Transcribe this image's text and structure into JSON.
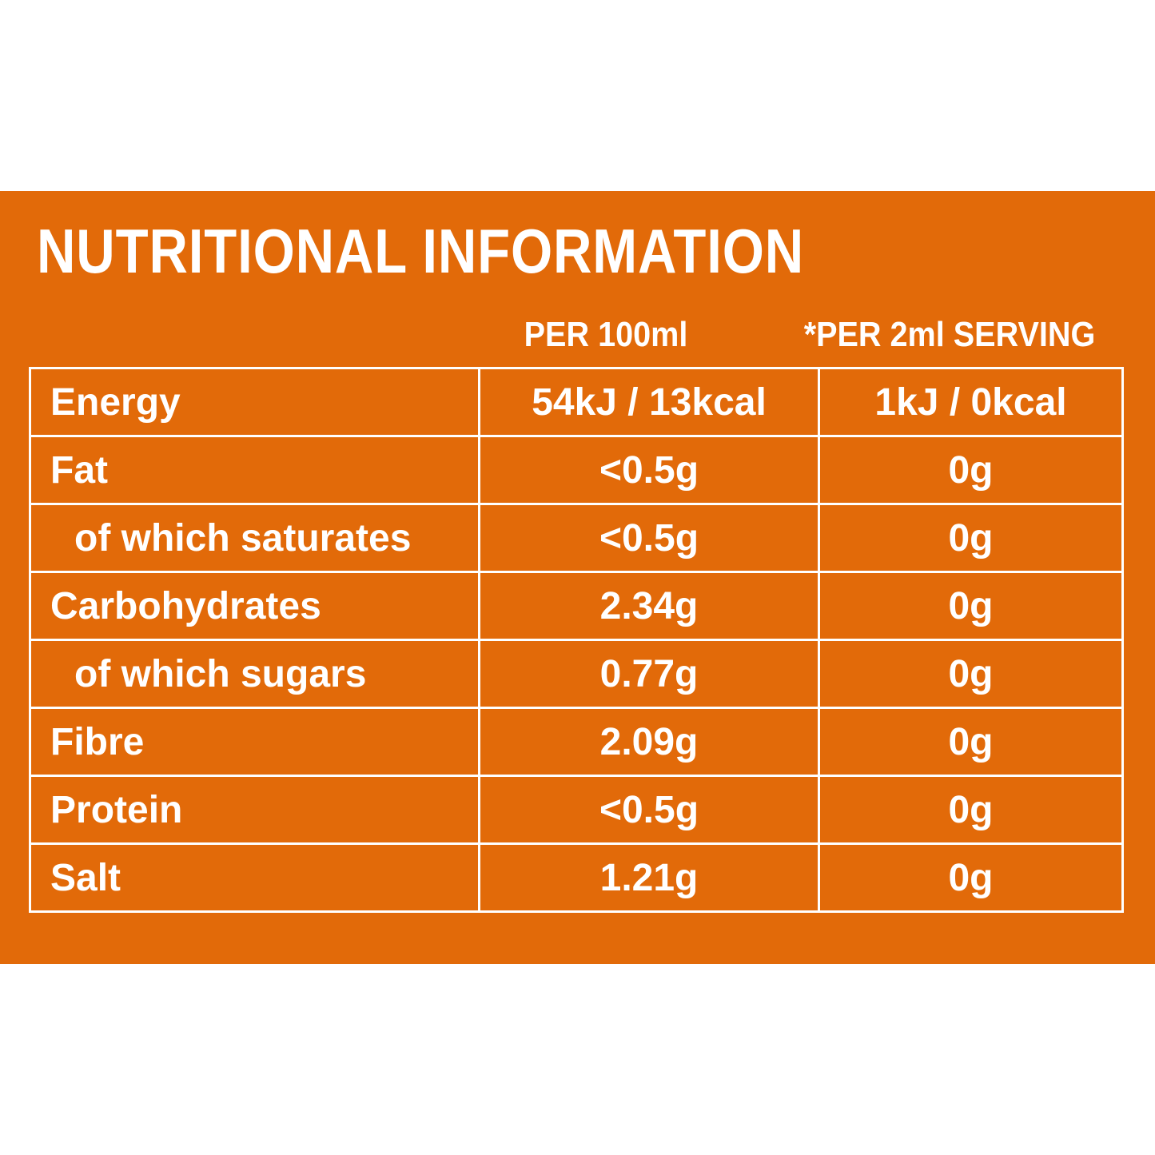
{
  "header": {
    "title": "NUTRITIONAL INFORMATION",
    "columns": [
      "PER 100ml",
      "*PER 2ml SERVING"
    ]
  },
  "table": {
    "rows": [
      [
        "Energy",
        "54kJ / 13kcal",
        "1kJ / 0kcal"
      ],
      [
        "Fat",
        "<0.5g",
        "0g"
      ],
      [
        "of which saturates",
        "<0.5g",
        "0g"
      ],
      [
        "Carbohydrates",
        "2.34g",
        "0g"
      ],
      [
        "of which sugars",
        "0.77g",
        "0g"
      ],
      [
        "Fibre",
        "2.09g",
        "0g"
      ],
      [
        "Protein",
        "<0.5g",
        "0g"
      ],
      [
        "Salt",
        "1.21g",
        "0g"
      ]
    ]
  }
}
